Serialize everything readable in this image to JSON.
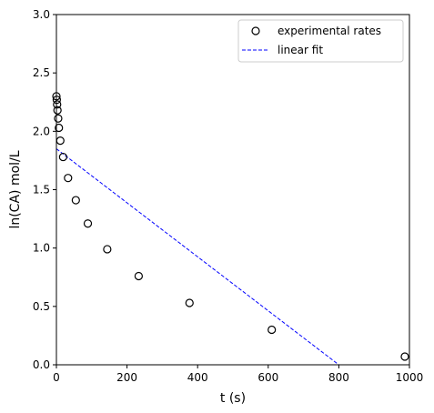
{
  "chart_data": {
    "type": "scatter",
    "xlabel": "t (s)",
    "ylabel": "ln(CA) mol/L",
    "xlim": [
      0,
      1000
    ],
    "ylim": [
      0,
      3.0
    ],
    "x_ticks": [
      0,
      200,
      400,
      600,
      800,
      1000
    ],
    "x_tick_labels": [
      "0",
      "200",
      "400",
      "600",
      "800",
      "1000"
    ],
    "y_ticks": [
      0,
      0.5,
      1.0,
      1.5,
      2.0,
      2.5,
      3.0
    ],
    "y_tick_labels": [
      "0.0",
      "0.5",
      "1.0",
      "1.5",
      "2.0",
      "2.5",
      "3.0"
    ],
    "grid": false,
    "legend_position": "top-right",
    "series": [
      {
        "name": "experimental rates",
        "kind": "scatter",
        "marker": "open-circle",
        "color": "#000000",
        "x": [
          0,
          1,
          2,
          3,
          5,
          7,
          11,
          19,
          33,
          55,
          89,
          144,
          233,
          377,
          610,
          987
        ],
        "y": [
          2.3,
          2.27,
          2.23,
          2.18,
          2.11,
          2.03,
          1.92,
          1.78,
          1.6,
          1.41,
          1.21,
          0.99,
          0.76,
          0.53,
          0.3,
          0.07
        ]
      },
      {
        "name": "linear fit",
        "kind": "line",
        "style": "dashed",
        "color": "#0000ff",
        "x": [
          0,
          800
        ],
        "y": [
          1.85,
          0.0
        ]
      }
    ]
  }
}
